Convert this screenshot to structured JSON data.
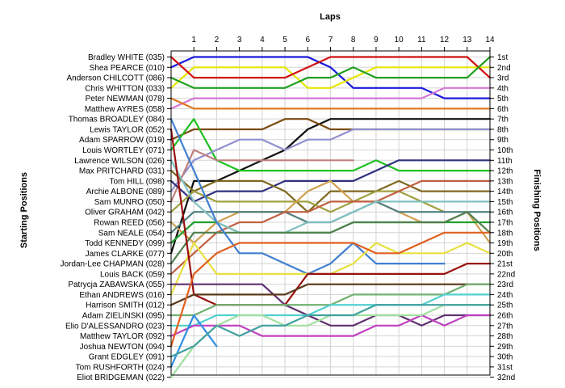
{
  "chart_data": {
    "type": "line",
    "title": "",
    "xlabel": "Laps",
    "ylabel_left": "Starting Positions",
    "ylabel_right": "Finishing Positions",
    "x": [
      0,
      1,
      2,
      3,
      4,
      5,
      6,
      7,
      8,
      9,
      10,
      11,
      12,
      13,
      14
    ],
    "x_tick_labels": [
      "1",
      "2",
      "3",
      "4",
      "5",
      "6",
      "7",
      "8",
      "9",
      "10",
      "11",
      "12",
      "13",
      "14"
    ],
    "ylim": [
      1,
      32
    ],
    "y_inverted": true,
    "grid": true,
    "starting_labels": [
      "Bradley WHITE (035)",
      "Shea PEARCE (010)",
      "Anderson CHILCOTT (086)",
      "Chris WHITTON (033)",
      "Peter NEWMAN (078)",
      "Matthew AYRES (058)",
      "Thomas BROADLEY (084)",
      "Lewis TAYLOR (052)",
      "Adam SPARROW (019)",
      "Louis WORTLEY (071)",
      "Lawrence WILSON (026)",
      "Max PRITCHARD (031)",
      "Tom HILL (098)",
      "Archie ALBONE (089)",
      "Sam MUNRO (050)",
      "Oliver GRAHAM (042)",
      "Rowan REED (056)",
      "Sam NEALE (054)",
      "Todd KENNEDY (099)",
      "James CLARKE (077)",
      "Jordan-Lee CHAPMAN (028)",
      "Louis BACK (059)",
      "Patrycja ZABAWSKA (055)",
      "Ethan ANDREWS (016)",
      "Harrison SMITH (012)",
      "Adam ZIELINSKI (095)",
      "Elio D'ALESSANDRO (023)",
      "Matthew TAYLOR (092)",
      "Joshua NEWTON (094)",
      "Grant EDGLEY (091)",
      "Tom RUSHFORTH (024)",
      "Eliot BRIDGEMAN (022)"
    ],
    "finishing_labels": [
      "1st",
      "2nd",
      "3rd",
      "4th",
      "5th",
      "6th",
      "7th",
      "8th",
      "9th",
      "10th",
      "11th",
      "12th",
      "13th",
      "14th",
      "15th",
      "16th",
      "17th",
      "18th",
      "19th",
      "20th",
      "21st",
      "22nd",
      "23rd",
      "24th",
      "25th",
      "26th",
      "27th",
      "28th",
      "29th",
      "30th",
      "31st",
      "32nd"
    ],
    "series": [
      {
        "color": "#1a1adc",
        "values": [
          2,
          1,
          1,
          1,
          1,
          1,
          1,
          2,
          4,
          4,
          4,
          4,
          5,
          5,
          5
        ]
      },
      {
        "color": "#e6e600",
        "values": [
          4,
          2,
          2,
          2,
          2,
          2,
          4,
          4,
          3,
          2,
          2,
          2,
          2,
          2,
          2
        ]
      },
      {
        "color": "#d01010",
        "values": [
          1,
          3,
          3,
          3,
          3,
          3,
          2,
          1,
          1,
          1,
          1,
          1,
          1,
          1,
          3
        ]
      },
      {
        "color": "#20a020",
        "values": [
          3,
          4,
          4,
          4,
          4,
          4,
          3,
          3,
          2,
          3,
          3,
          3,
          3,
          3,
          1
        ]
      },
      {
        "color": "#d478d4",
        "values": [
          6,
          5,
          5,
          5,
          5,
          5,
          5,
          5,
          5,
          5,
          5,
          5,
          4,
          4,
          4
        ]
      },
      {
        "color": "#e07820",
        "values": [
          5,
          6,
          6,
          6,
          6,
          6,
          6,
          6,
          6,
          6,
          6,
          6,
          6,
          6,
          6
        ]
      },
      {
        "color": "#111111",
        "values": [
          20,
          13,
          13,
          12,
          11,
          10,
          8,
          7,
          7,
          7,
          7,
          7,
          7,
          7,
          7
        ]
      },
      {
        "color": "#7a4a10",
        "values": [
          9,
          8,
          8,
          8,
          8,
          7,
          7,
          8,
          8,
          8,
          8,
          8,
          8,
          8,
          8
        ]
      },
      {
        "color": "#20c020",
        "values": [
          10,
          7,
          11,
          12,
          12,
          12,
          12,
          12,
          12,
          11,
          12,
          12,
          12,
          12,
          12
        ]
      },
      {
        "color": "#9090d0",
        "values": [
          14,
          11,
          10,
          9,
          9,
          10,
          9,
          9,
          8,
          8,
          8,
          8,
          8,
          8,
          8
        ]
      },
      {
        "color": "#c08080",
        "values": [
          15,
          10,
          11,
          11,
          11,
          11,
          11,
          11,
          11,
          null,
          null,
          null,
          null,
          null,
          null
        ]
      },
      {
        "color": "#303080",
        "values": [
          13,
          15,
          14,
          14,
          14,
          13,
          13,
          13,
          13,
          12,
          11,
          11,
          11,
          11,
          11
        ]
      },
      {
        "color": "#806820",
        "values": [
          12,
          14,
          13,
          13,
          13,
          14,
          16,
          14,
          14,
          14,
          13,
          14,
          14,
          14,
          14
        ]
      },
      {
        "color": "#a0a040",
        "values": [
          16,
          14,
          15,
          15,
          15,
          15,
          15,
          16,
          15,
          14,
          14,
          15,
          16,
          null,
          null
        ]
      },
      {
        "color": "#d0a050",
        "values": [
          17,
          19,
          17,
          16,
          16,
          16,
          14,
          13,
          15,
          15,
          16,
          17,
          17,
          16,
          19
        ]
      },
      {
        "color": "#508080",
        "values": [
          18,
          16,
          16,
          16,
          16,
          16,
          17,
          17,
          16,
          15,
          16,
          16,
          16,
          16,
          16
        ]
      },
      {
        "color": "#20a030",
        "values": [
          19,
          17,
          17,
          18,
          18,
          18,
          18,
          18,
          17,
          17,
          17,
          17,
          17,
          17,
          17
        ]
      },
      {
        "color": "#c06040",
        "values": [
          22,
          20,
          18,
          17,
          17,
          16,
          16,
          15,
          15,
          15,
          14,
          13,
          13,
          13,
          13
        ]
      },
      {
        "color": "#80c0c0",
        "values": [
          11,
          15,
          17,
          18,
          18,
          18,
          17,
          17,
          16,
          15,
          15,
          15,
          15,
          15,
          15
        ]
      },
      {
        "color": "#508050",
        "values": [
          21,
          18,
          18,
          18,
          18,
          18,
          18,
          18,
          17,
          17,
          17,
          17,
          17,
          16,
          18
        ]
      },
      {
        "color": "#4080d0",
        "values": [
          7,
          12,
          17,
          20,
          20,
          21,
          22,
          21,
          19,
          21,
          21,
          21,
          21,
          null,
          null
        ]
      },
      {
        "color": "#e8e040",
        "values": [
          24,
          19,
          22,
          22,
          22,
          22,
          22,
          22,
          21,
          19,
          20,
          20,
          20,
          19,
          20
        ]
      },
      {
        "color": "#9a1010",
        "values": [
          8,
          24,
          25,
          25,
          25,
          25,
          22,
          22,
          22,
          22,
          22,
          22,
          22,
          21,
          21
        ]
      },
      {
        "color": "#603070",
        "values": [
          23,
          23,
          23,
          23,
          23,
          25,
          26,
          27,
          27,
          26,
          26,
          27,
          26,
          26,
          26
        ]
      },
      {
        "color": "#5a3818",
        "values": [
          25,
          24,
          24,
          24,
          24,
          24,
          23,
          23,
          23,
          23,
          23,
          23,
          23,
          23,
          23
        ]
      },
      {
        "color": "#70b070",
        "values": [
          26,
          26,
          25,
          25,
          25,
          25,
          25,
          25,
          24,
          24,
          24,
          24,
          24,
          23,
          23
        ]
      },
      {
        "color": "#50d0d0",
        "values": [
          27,
          27,
          26,
          26,
          26,
          26,
          26,
          25,
          25,
          25,
          25,
          25,
          24,
          24,
          24
        ]
      },
      {
        "color": "#c040c0",
        "values": [
          28,
          27,
          27,
          27,
          28,
          28,
          28,
          28,
          28,
          27,
          27,
          26,
          27,
          26,
          26
        ]
      },
      {
        "color": "#e06020",
        "values": [
          29,
          22,
          20,
          19,
          19,
          19,
          19,
          19,
          19,
          20,
          20,
          19,
          18,
          18,
          18
        ]
      },
      {
        "color": "#3090e0",
        "values": [
          31,
          26,
          29,
          null,
          null,
          null,
          null,
          null,
          null,
          null,
          null,
          null,
          null,
          null,
          null
        ]
      },
      {
        "color": "#a0e0a0",
        "values": [
          32,
          29,
          27,
          26,
          26,
          27,
          27,
          26,
          26,
          26,
          26,
          26,
          25,
          25,
          25
        ]
      },
      {
        "color": "#40a0a0",
        "values": [
          30,
          29,
          27,
          28,
          27,
          27,
          26,
          26,
          26,
          25,
          25,
          25,
          25,
          25,
          25
        ]
      }
    ]
  }
}
